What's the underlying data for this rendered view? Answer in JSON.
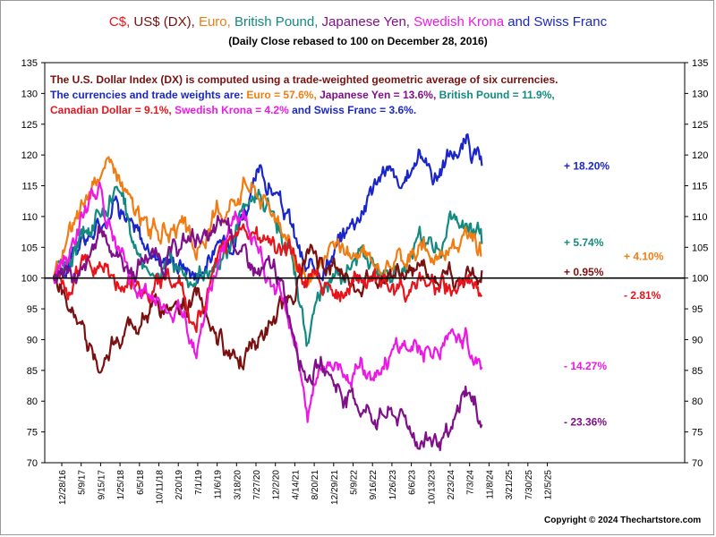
{
  "title_parts": [
    {
      "text": "C$",
      "color": "#e8141c"
    },
    {
      "text": ", ",
      "color": "#e8141c"
    },
    {
      "text": "US$ (DX)",
      "color": "#7a1010"
    },
    {
      "text": ", ",
      "color": "#7a1010"
    },
    {
      "text": "Euro",
      "color": "#f07c14"
    },
    {
      "text": ", ",
      "color": "#f07c14"
    },
    {
      "text": "British Pound",
      "color": "#138a80"
    },
    {
      "text": ", ",
      "color": "#138a80"
    },
    {
      "text": "Japanese Yen",
      "color": "#80108a"
    },
    {
      "text": ", ",
      "color": "#80108a"
    },
    {
      "text": "Swedish Krona",
      "color": "#ee18e6"
    },
    {
      "text": " and ",
      "color": "#1a26c8"
    },
    {
      "text": "Swiss Franc",
      "color": "#1a26c8"
    }
  ],
  "subtitle": "(Daily Close rebased to 100 on December 28, 2016)",
  "annotation": [
    [
      {
        "text": "The U.S. Dollar Index (DX) is computed using a trade-weighted geometric average of six currencies.",
        "color": "#7a1010"
      }
    ],
    [
      {
        "text": "The currencies and  trade weights are: ",
        "color": "#1a26c8"
      },
      {
        "text": "Euro = 57.6%, ",
        "color": "#f07c14"
      },
      {
        "text": "Japanese Yen = 13.6%,  ",
        "color": "#80108a"
      },
      {
        "text": "British Pound = 11.9%,",
        "color": "#138a80"
      }
    ],
    [
      {
        "text": "Canadian Dollar = 9.1%, ",
        "color": "#e8141c"
      },
      {
        "text": "Swedish Krona = 4.2% ",
        "color": "#ee18e6"
      },
      {
        "text": "and Swiss Franc = 3.6%.",
        "color": "#1a26c8"
      }
    ]
  ],
  "copyright": "Copyright © 2024 Thechartstore.com",
  "chart_data": {
    "type": "line",
    "ylim": [
      70,
      135
    ],
    "yticks": [
      70,
      75,
      80,
      85,
      90,
      95,
      100,
      105,
      110,
      115,
      120,
      125,
      130,
      135
    ],
    "baseline": 100,
    "x_tick_labels": [
      "12/28/16",
      "5/9/17",
      "9/15/17",
      "1/25/18",
      "6/5/18",
      "10/11/18",
      "2/20/19",
      "7/1/19",
      "11/6/19",
      "3/18/20",
      "7/27/20",
      "12/2/20",
      "4/14/21",
      "8/20/21",
      "12/29/21",
      "5/9/22",
      "9/16/22",
      "1/26/23",
      "6/6/23",
      "10/13/23",
      "2/23/24",
      "7/3/24",
      "11/8/24",
      "3/21/25",
      "7/30/25",
      "12/5/25"
    ],
    "data_end_index": 22,
    "grid": false,
    "series": [
      {
        "name": "Swiss Franc",
        "color": "#1a26c8",
        "end_label": "+ 18.20%",
        "values": [
          100,
          104,
          106,
          109,
          114,
          108,
          104,
          104,
          103,
          101,
          104,
          106,
          112,
          116,
          114,
          108,
          100,
          103,
          106,
          110,
          115,
          118,
          113,
          121,
          117,
          120,
          122,
          118.2
        ]
      },
      {
        "name": "British Pound",
        "color": "#138a80",
        "end_label": "+ 5.74%",
        "values": [
          100,
          103,
          107,
          111,
          115,
          106,
          102,
          102,
          101,
          99,
          102,
          104,
          111,
          113,
          111,
          105,
          89,
          98,
          101,
          102,
          103,
          102,
          103,
          106,
          105,
          108,
          107,
          105.74
        ]
      },
      {
        "name": "Euro",
        "color": "#f07c14",
        "end_label": "+ 4.10%",
        "values": [
          100,
          106,
          112,
          119,
          117,
          111,
          108,
          108,
          107,
          103,
          109,
          112,
          117,
          114,
          111,
          106,
          96,
          103,
          105,
          104,
          103,
          103,
          104,
          105,
          104,
          106,
          107,
          104.1
        ]
      },
      {
        "name": "US$ (DX)",
        "color": "#7a1010",
        "end_label": "+ 0.95%",
        "values": [
          100,
          95,
          90,
          87,
          90,
          93,
          94,
          95,
          96,
          97,
          92,
          88,
          89,
          90,
          92,
          97,
          103,
          102,
          101,
          99,
          100,
          101,
          100,
          101,
          100,
          101,
          100,
          100.95
        ]
      },
      {
        "name": "C$",
        "color": "#e8141c",
        "end_label": "- 2.81%",
        "values": [
          100,
          99,
          103,
          103,
          99,
          100,
          98,
          99,
          100,
          90,
          101,
          107,
          110,
          107,
          106,
          104,
          100,
          99,
          98,
          100,
          99,
          99,
          98,
          99,
          98,
          99,
          99,
          97.19
        ]
      },
      {
        "name": "Swedish Krona",
        "color": "#ee18e6",
        "end_label": "- 14.27%",
        "values": [
          100,
          104,
          110,
          113,
          104,
          99,
          97,
          96,
          95,
          89,
          99,
          107,
          111,
          104,
          99,
          93,
          80,
          87,
          86,
          85,
          86,
          87,
          89,
          88,
          89,
          88,
          90,
          85.73
        ]
      },
      {
        "name": "Japanese Yen",
        "color": "#80108a",
        "end_label": "- 23.36%",
        "values": [
          100,
          101,
          100,
          108,
          104,
          101,
          104,
          103,
          105,
          107,
          106,
          109,
          103,
          100,
          101,
          93,
          85,
          86,
          82,
          80,
          78,
          78,
          77,
          74,
          74,
          73,
          82,
          76.64
        ]
      }
    ]
  }
}
